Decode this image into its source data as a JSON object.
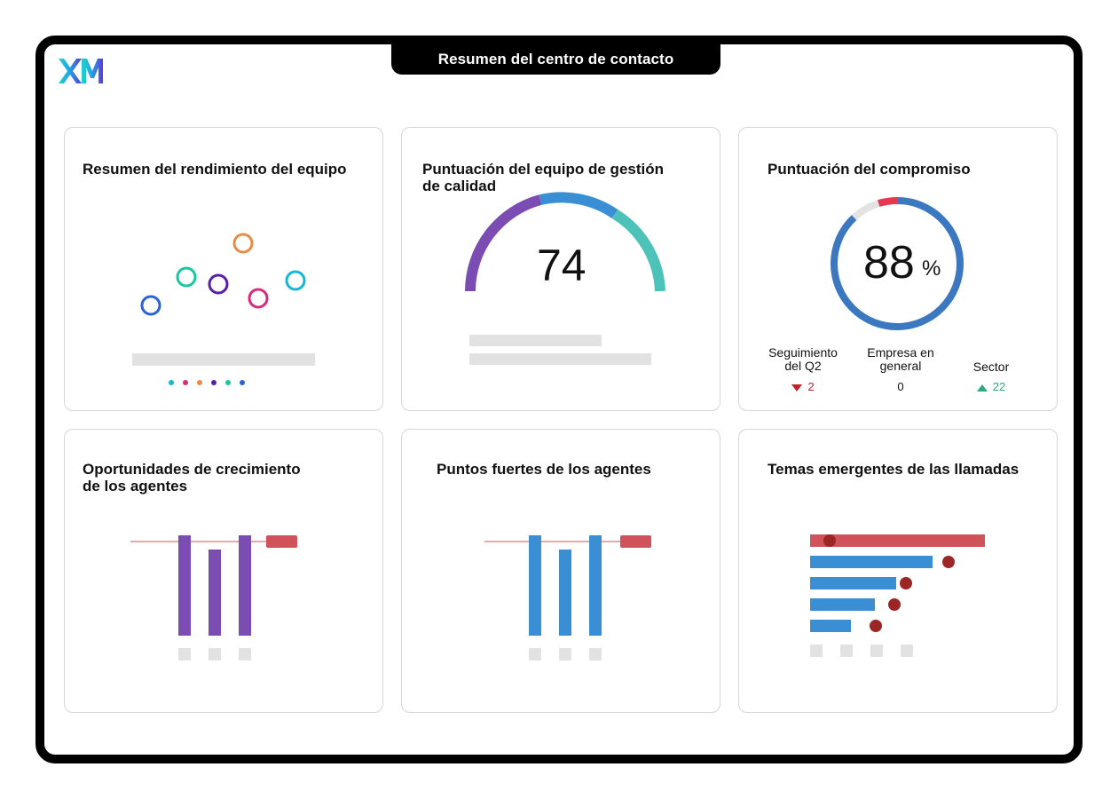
{
  "header": {
    "title": "Resumen del centro de contacto",
    "logo": "XM"
  },
  "colors": {
    "purple": "#7b4db3",
    "blue": "#3a8fd4",
    "teal": "#4cc2b8",
    "red": "#d0525b",
    "dark_red": "#9c2626",
    "ring_blue": "#3b78c0",
    "green": "#2fa77c",
    "down_red": "#c81e28"
  },
  "cards": {
    "team_performance": {
      "title": "Resumen del rendimiento del equipo"
    },
    "quality_score": {
      "title_line1": "Puntuación del equipo de gestión",
      "title_line2": "de calidad",
      "score": "74"
    },
    "engagement": {
      "title": "Puntuación del compromiso",
      "value": "88",
      "unit": "%",
      "stats": [
        {
          "label_line1": "Seguimiento",
          "label_line2": "del Q2",
          "value": "2",
          "trend": "down"
        },
        {
          "label_line1": "Empresa en",
          "label_line2": "general",
          "value": "0",
          "trend": "none"
        },
        {
          "label_line1": "Sector",
          "label_line2": "",
          "value": "22",
          "trend": "up"
        }
      ]
    },
    "growth": {
      "title_line1": "Oportunidades de crecimiento",
      "title_line2": "de los agentes"
    },
    "strengths": {
      "title": "Puntos fuertes de los agentes"
    },
    "emerging": {
      "title": "Temas emergentes de las llamadas"
    }
  }
}
